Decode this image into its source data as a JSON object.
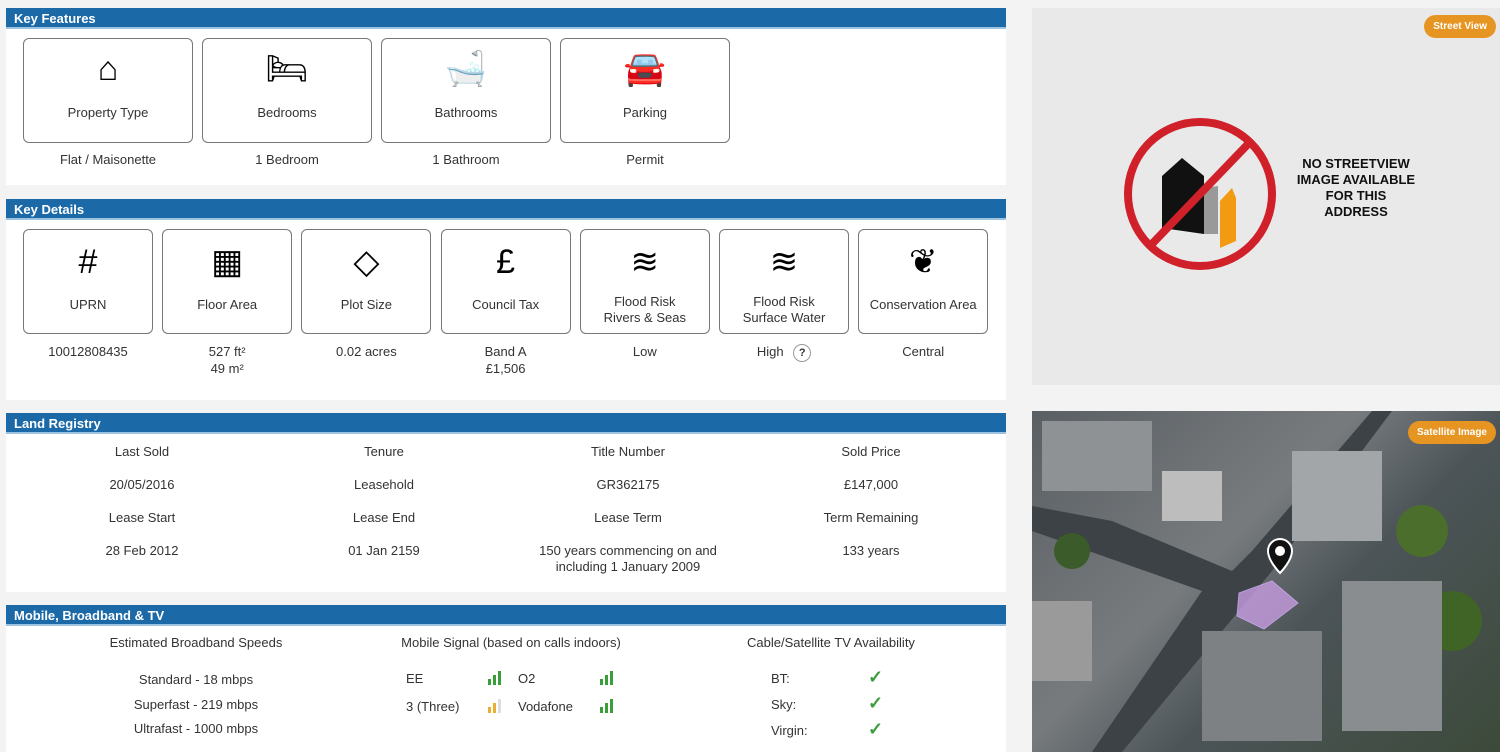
{
  "key_features": {
    "title": "Key Features",
    "items": [
      {
        "label": "Property Type",
        "value": "Flat / Maisonette",
        "icon": "house-icon"
      },
      {
        "label": "Bedrooms",
        "value": "1 Bedroom",
        "icon": "bed-icon"
      },
      {
        "label": "Bathrooms",
        "value": "1 Bathroom",
        "icon": "bath-icon"
      },
      {
        "label": "Parking",
        "value": "Permit",
        "icon": "car-icon"
      }
    ]
  },
  "key_details": {
    "title": "Key Details",
    "items": [
      {
        "label": "UPRN",
        "value": "10012808435",
        "icon": "hash-icon"
      },
      {
        "label": "Floor Area",
        "value": "527 ft²",
        "value2": "49 m²",
        "icon": "floorplan-icon"
      },
      {
        "label": "Plot Size",
        "value": "0.02 acres",
        "icon": "plot-icon"
      },
      {
        "label": "Council Tax",
        "value": "Band A",
        "value2": "£1,506",
        "icon": "council-tax-icon"
      },
      {
        "label": "Flood Risk",
        "label2": "Rivers & Seas",
        "value": "Low",
        "icon": "flood-icon"
      },
      {
        "label": "Flood Risk",
        "label2": "Surface Water",
        "value": "High",
        "icon": "flood-icon"
      },
      {
        "label": "Conservation Area",
        "value": "Central",
        "icon": "plant-hand-icon"
      }
    ],
    "help": "?"
  },
  "land_registry": {
    "title": "Land Registry",
    "rows": [
      [
        "Last Sold",
        "Tenure",
        "Title Number",
        "Sold Price"
      ],
      [
        "20/05/2016",
        "Leasehold",
        "GR362175",
        "£147,000"
      ],
      [
        "Lease Start",
        "Lease End",
        "Lease Term",
        "Term Remaining"
      ],
      [
        "28 Feb 2012",
        "01 Jan 2159",
        "150 years commencing on and including 1 January 2009",
        "133 years"
      ]
    ]
  },
  "mobile": {
    "title": "Mobile, Broadband & TV",
    "broadband_title": "Estimated Broadband Speeds",
    "broadband": [
      "Standard - 18 mbps",
      "Superfast - 219 mbps",
      "Ultrafast - 1000 mbps"
    ],
    "signal_title": "Mobile Signal (based on calls indoors)",
    "signal": [
      {
        "name": "EE",
        "level": 3,
        "color": "#3a9e3a"
      },
      {
        "name": "O2",
        "level": 3,
        "color": "#3a9e3a"
      },
      {
        "name": "3 (Three)",
        "level": 2,
        "color": "#e8b030"
      },
      {
        "name": "Vodafone",
        "level": 3,
        "color": "#3a9e3a"
      }
    ],
    "tv_title": "Cable/Satellite TV Availability",
    "tv": [
      {
        "name": "BT:",
        "available": true
      },
      {
        "name": "Sky:",
        "available": true
      },
      {
        "name": "Virgin:",
        "available": true
      }
    ]
  },
  "street_view": {
    "button": "Street View",
    "message": "NO STREETVIEW IMAGE AVAILABLE FOR THIS ADDRESS"
  },
  "satellite": {
    "button": "Satellite Image"
  }
}
